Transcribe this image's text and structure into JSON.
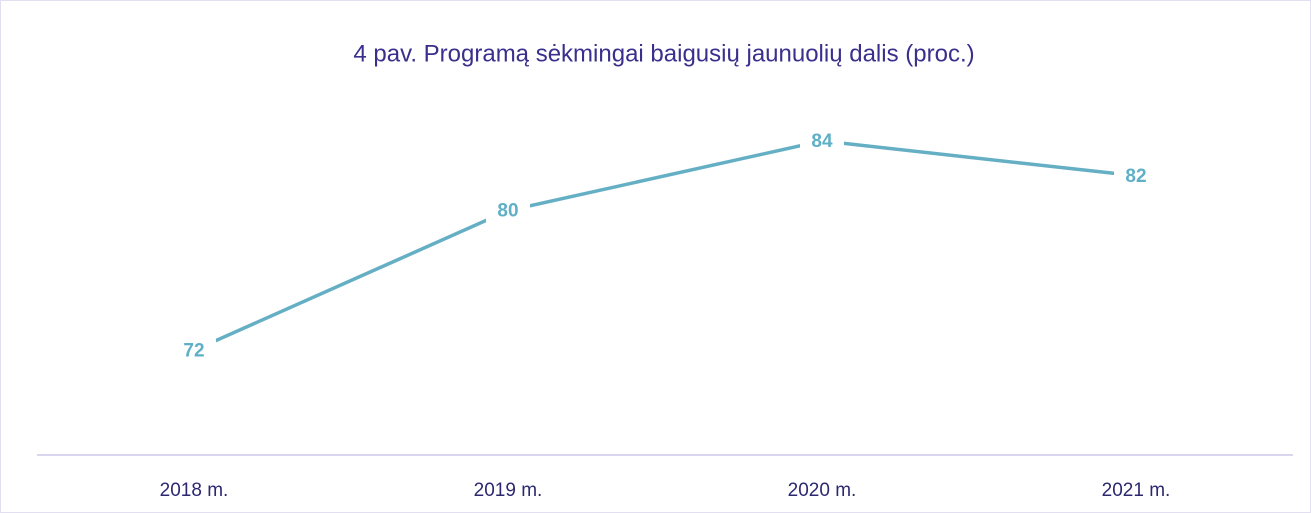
{
  "chart_data": {
    "type": "line",
    "title": "4 pav. Programą sėkmingai baigusių jaunuolių dalis (proc.)",
    "categories": [
      "2018 m.",
      "2019 m.",
      "2020 m.",
      "2021 m."
    ],
    "values": [
      72,
      80,
      84,
      82
    ],
    "color": "#65afc5",
    "ylim": [
      66,
      86
    ],
    "grid": false
  }
}
